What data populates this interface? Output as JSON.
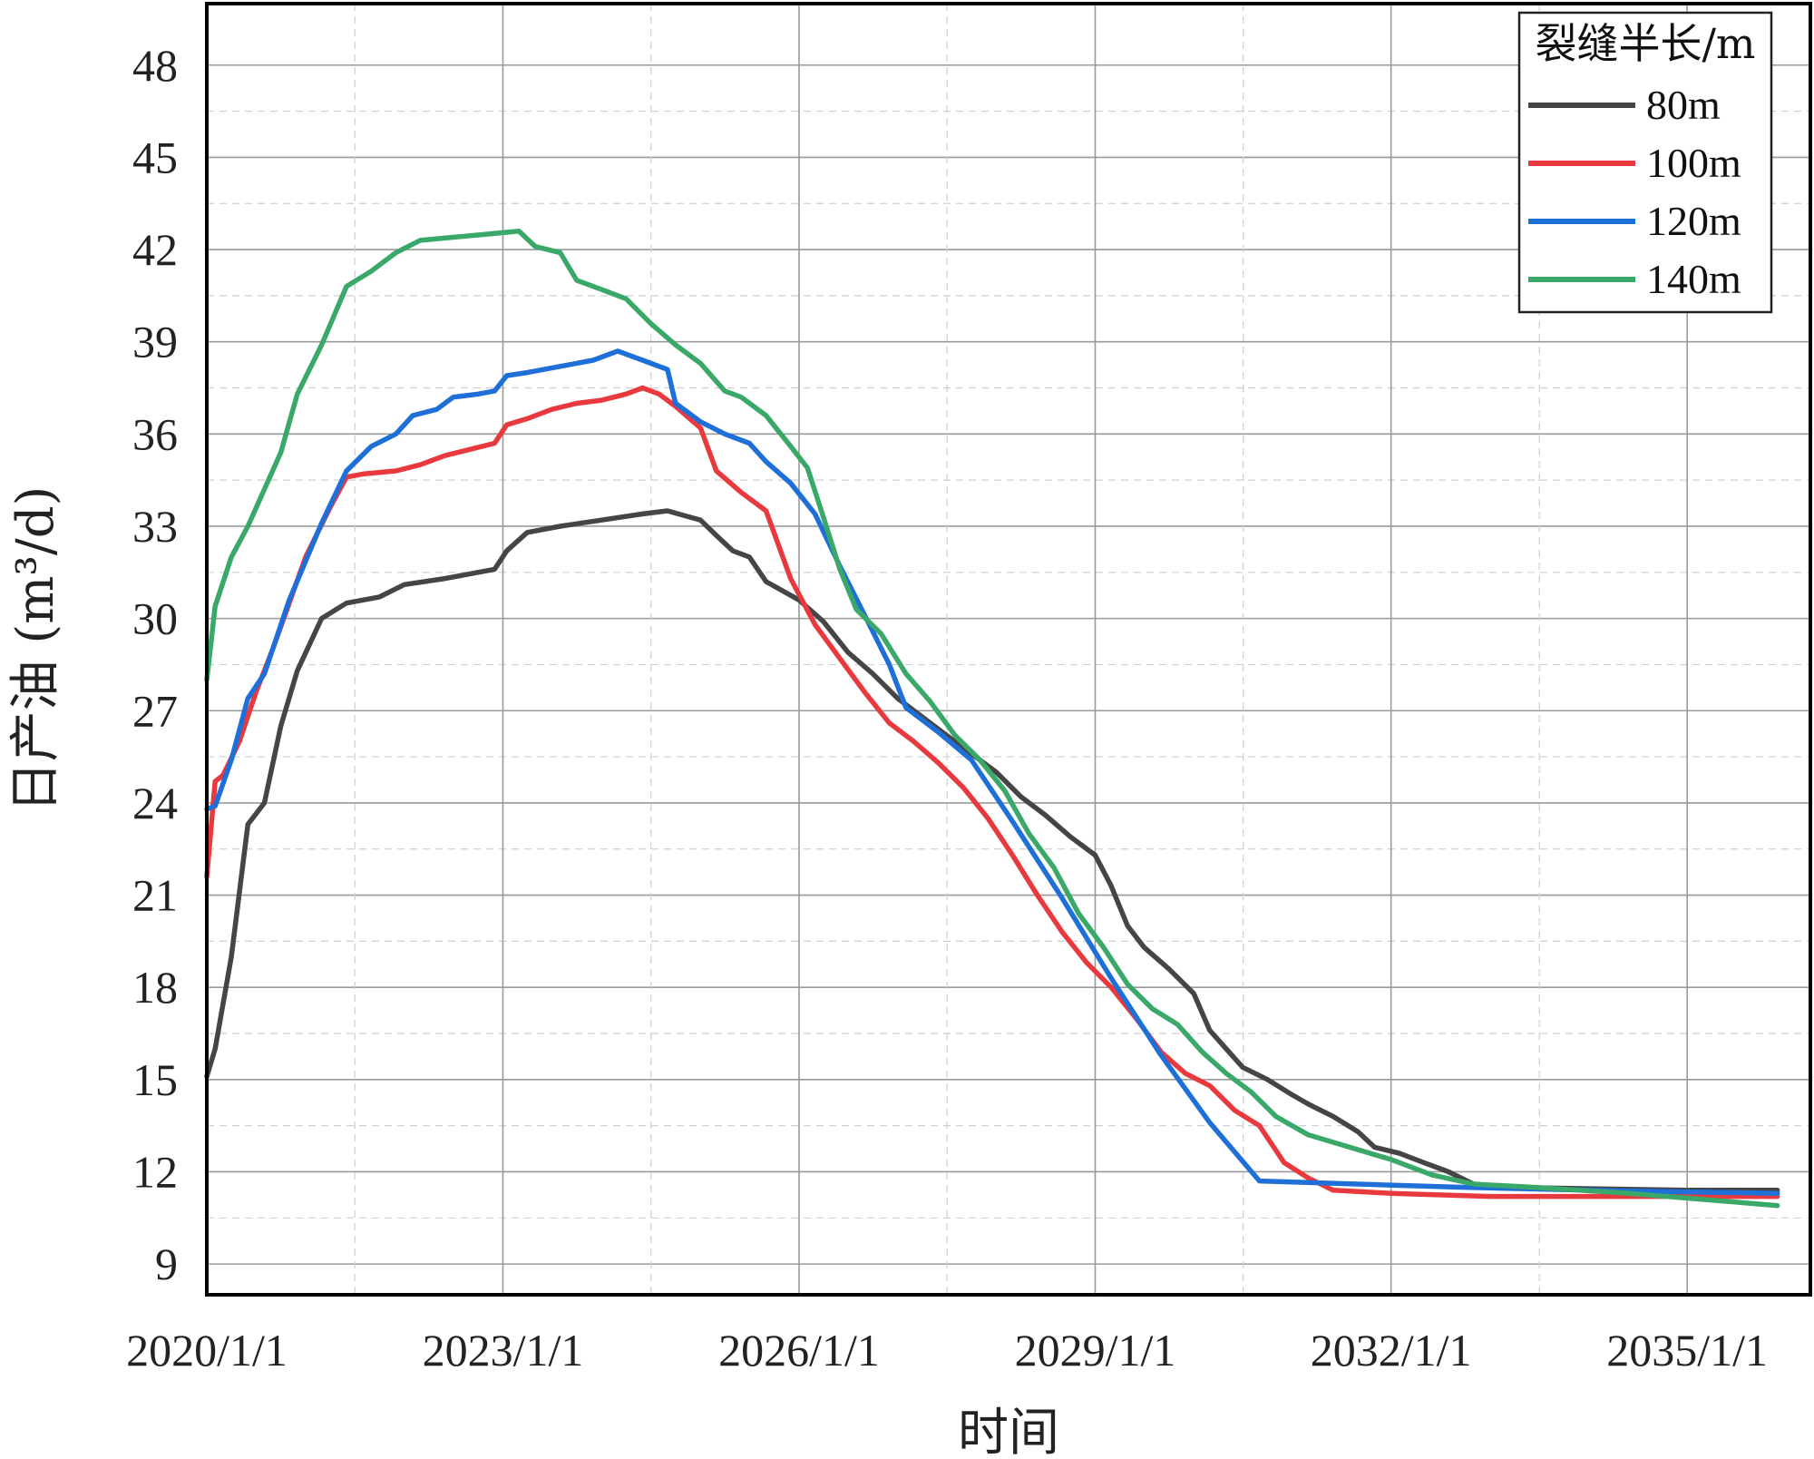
{
  "chart_data": {
    "type": "line",
    "xlabel": "时间",
    "ylabel": "日产油 (m³/d)",
    "xlim": [
      "2020/1/1",
      "2036/4/1"
    ],
    "ylim": [
      8,
      50
    ],
    "x_ticks": [
      "2020/1/1",
      "2023/1/1",
      "2026/1/1",
      "2029/1/1",
      "2032/1/1",
      "2035/1/1"
    ],
    "y_ticks": [
      9,
      12,
      15,
      18,
      21,
      24,
      27,
      30,
      33,
      36,
      39,
      42,
      45,
      48
    ],
    "grid": true,
    "legend": {
      "title": "裂缝半长/m",
      "placement": "top-right"
    },
    "series": [
      {
        "name": "80m",
        "color": "#454545",
        "points": [
          [
            "2020/1/1",
            15.1
          ],
          [
            "2020/2/1",
            16.0
          ],
          [
            "2020/4/1",
            19.0
          ],
          [
            "2020/6/1",
            23.3
          ],
          [
            "2020/8/1",
            24.0
          ],
          [
            "2020/10/1",
            26.5
          ],
          [
            "2020/12/1",
            28.3
          ],
          [
            "2021/3/1",
            30.0
          ],
          [
            "2021/6/1",
            30.5
          ],
          [
            "2021/10/1",
            30.7
          ],
          [
            "2022/1/1",
            31.1
          ],
          [
            "2022/6/1",
            31.3
          ],
          [
            "2022/10/1",
            31.5
          ],
          [
            "2022/12/1",
            31.6
          ],
          [
            "2023/1/15",
            32.2
          ],
          [
            "2023/4/1",
            32.8
          ],
          [
            "2023/8/1",
            33.0
          ],
          [
            "2024/1/1",
            33.2
          ],
          [
            "2024/6/1",
            33.4
          ],
          [
            "2024/9/1",
            33.5
          ],
          [
            "2025/1/1",
            33.2
          ],
          [
            "2025/3/1",
            32.7
          ],
          [
            "2025/5/1",
            32.2
          ],
          [
            "2025/7/1",
            32.0
          ],
          [
            "2025/9/1",
            31.2
          ],
          [
            "2026/1/1",
            30.6
          ],
          [
            "2026/4/1",
            29.9
          ],
          [
            "2026/7/1",
            28.9
          ],
          [
            "2026/10/1",
            28.2
          ],
          [
            "2027/1/1",
            27.4
          ],
          [
            "2027/4/1",
            26.8
          ],
          [
            "2027/7/1",
            26.2
          ],
          [
            "2027/10/1",
            25.6
          ],
          [
            "2028/1/1",
            25.0
          ],
          [
            "2028/4/1",
            24.2
          ],
          [
            "2028/7/1",
            23.6
          ],
          [
            "2028/10/1",
            22.9
          ],
          [
            "2029/1/1",
            22.3
          ],
          [
            "2029/3/1",
            21.3
          ],
          [
            "2029/5/1",
            20.0
          ],
          [
            "2029/7/1",
            19.3
          ],
          [
            "2029/10/1",
            18.6
          ],
          [
            "2030/1/1",
            17.8
          ],
          [
            "2030/3/1",
            16.6
          ],
          [
            "2030/5/1",
            16.0
          ],
          [
            "2030/7/1",
            15.4
          ],
          [
            "2030/10/1",
            15.0
          ],
          [
            "2031/1/1",
            14.5
          ],
          [
            "2031/3/1",
            14.2
          ],
          [
            "2031/6/1",
            13.8
          ],
          [
            "2031/9/1",
            13.3
          ],
          [
            "2031/11/1",
            12.8
          ],
          [
            "2032/2/1",
            12.6
          ],
          [
            "2032/5/1",
            12.3
          ],
          [
            "2032/8/1",
            12.0
          ],
          [
            "2032/11/1",
            11.6
          ],
          [
            "2033/3/1",
            11.5
          ],
          [
            "2034/1/1",
            11.45
          ],
          [
            "2035/1/1",
            11.4
          ],
          [
            "2035/12/1",
            11.4
          ]
        ]
      },
      {
        "name": "100m",
        "color": "#e8393e",
        "points": [
          [
            "2020/1/1",
            21.6
          ],
          [
            "2020/2/1",
            24.7
          ],
          [
            "2020/3/1",
            24.9
          ],
          [
            "2020/5/1",
            26.0
          ],
          [
            "2020/7/1",
            27.6
          ],
          [
            "2020/9/1",
            29.0
          ],
          [
            "2020/11/1",
            30.5
          ],
          [
            "2021/1/1",
            32.0
          ],
          [
            "2021/4/1",
            33.6
          ],
          [
            "2021/6/1",
            34.6
          ],
          [
            "2021/8/1",
            34.7
          ],
          [
            "2021/12/1",
            34.8
          ],
          [
            "2022/3/1",
            35.0
          ],
          [
            "2022/6/1",
            35.3
          ],
          [
            "2022/9/1",
            35.5
          ],
          [
            "2022/12/1",
            35.7
          ],
          [
            "2023/1/15",
            36.3
          ],
          [
            "2023/4/1",
            36.5
          ],
          [
            "2023/7/1",
            36.8
          ],
          [
            "2023/10/1",
            37.0
          ],
          [
            "2024/1/1",
            37.1
          ],
          [
            "2024/4/1",
            37.3
          ],
          [
            "2024/6/1",
            37.5
          ],
          [
            "2024/8/1",
            37.3
          ],
          [
            "2024/10/1",
            36.9
          ],
          [
            "2025/1/1",
            36.2
          ],
          [
            "2025/3/1",
            34.8
          ],
          [
            "2025/6/1",
            34.1
          ],
          [
            "2025/9/1",
            33.5
          ],
          [
            "2025/12/1",
            31.3
          ],
          [
            "2026/3/1",
            29.8
          ],
          [
            "2026/6/1",
            28.7
          ],
          [
            "2026/9/1",
            27.6
          ],
          [
            "2026/12/1",
            26.6
          ],
          [
            "2027/3/1",
            26.0
          ],
          [
            "2027/6/1",
            25.3
          ],
          [
            "2027/9/1",
            24.5
          ],
          [
            "2027/12/1",
            23.5
          ],
          [
            "2028/3/1",
            22.3
          ],
          [
            "2028/6/1",
            21.0
          ],
          [
            "2028/9/1",
            19.8
          ],
          [
            "2028/12/1",
            18.8
          ],
          [
            "2029/3/1",
            18.0
          ],
          [
            "2029/6/1",
            17.0
          ],
          [
            "2029/9/1",
            15.9
          ],
          [
            "2029/12/1",
            15.2
          ],
          [
            "2030/3/1",
            14.8
          ],
          [
            "2030/6/1",
            14.0
          ],
          [
            "2030/9/1",
            13.5
          ],
          [
            "2030/12/1",
            12.3
          ],
          [
            "2031/3/1",
            11.8
          ],
          [
            "2031/6/1",
            11.4
          ],
          [
            "2032/1/1",
            11.3
          ],
          [
            "2033/1/1",
            11.2
          ],
          [
            "2034/1/1",
            11.2
          ],
          [
            "2035/12/1",
            11.2
          ]
        ]
      },
      {
        "name": "120m",
        "color": "#1f6fd8",
        "points": [
          [
            "2020/1/1",
            23.8
          ],
          [
            "2020/2/1",
            23.9
          ],
          [
            "2020/4/1",
            25.4
          ],
          [
            "2020/6/1",
            27.4
          ],
          [
            "2020/8/1",
            28.2
          ],
          [
            "2020/11/1",
            30.6
          ],
          [
            "2021/3/1",
            33.1
          ],
          [
            "2021/6/1",
            34.8
          ],
          [
            "2021/9/1",
            35.6
          ],
          [
            "2021/12/1",
            36.0
          ],
          [
            "2022/2/1",
            36.6
          ],
          [
            "2022/5/1",
            36.8
          ],
          [
            "2022/7/1",
            37.2
          ],
          [
            "2022/10/1",
            37.3
          ],
          [
            "2022/12/1",
            37.4
          ],
          [
            "2023/1/15",
            37.9
          ],
          [
            "2023/4/1",
            38.0
          ],
          [
            "2023/8/1",
            38.2
          ],
          [
            "2023/12/1",
            38.4
          ],
          [
            "2024/3/1",
            38.7
          ],
          [
            "2024/6/1",
            38.4
          ],
          [
            "2024/9/1",
            38.1
          ],
          [
            "2024/10/1",
            37.0
          ],
          [
            "2025/1/1",
            36.4
          ],
          [
            "2025/4/1",
            36.0
          ],
          [
            "2025/7/1",
            35.7
          ],
          [
            "2025/9/1",
            35.1
          ],
          [
            "2025/12/1",
            34.4
          ],
          [
            "2026/3/1",
            33.4
          ],
          [
            "2026/6/1",
            31.7
          ],
          [
            "2026/9/1",
            30.1
          ],
          [
            "2026/12/1",
            28.5
          ],
          [
            "2027/2/1",
            27.1
          ],
          [
            "2027/6/1",
            26.3
          ],
          [
            "2027/10/1",
            25.4
          ],
          [
            "2028/3/1",
            23.4
          ],
          [
            "2028/9/1",
            20.9
          ],
          [
            "2029/3/1",
            18.3
          ],
          [
            "2029/9/1",
            15.8
          ],
          [
            "2030/3/1",
            13.6
          ],
          [
            "2030/9/1",
            11.7
          ],
          [
            "2031/9/1",
            11.6
          ],
          [
            "2032/9/1",
            11.5
          ],
          [
            "2034/1/1",
            11.4
          ],
          [
            "2035/12/1",
            11.3
          ]
        ]
      },
      {
        "name": "140m",
        "color": "#3aa869",
        "points": [
          [
            "2020/1/1",
            28.0
          ],
          [
            "2020/2/1",
            30.4
          ],
          [
            "2020/4/1",
            32.0
          ],
          [
            "2020/6/1",
            33.0
          ],
          [
            "2020/8/1",
            34.2
          ],
          [
            "2020/10/1",
            35.4
          ],
          [
            "2020/12/1",
            37.3
          ],
          [
            "2021/3/1",
            38.9
          ],
          [
            "2021/6/1",
            40.8
          ],
          [
            "2021/9/1",
            41.3
          ],
          [
            "2021/12/1",
            41.9
          ],
          [
            "2022/3/1",
            42.3
          ],
          [
            "2022/7/1",
            42.4
          ],
          [
            "2022/11/1",
            42.5
          ],
          [
            "2023/3/1",
            42.6
          ],
          [
            "2023/5/1",
            42.1
          ],
          [
            "2023/8/1",
            41.9
          ],
          [
            "2023/10/1",
            41.0
          ],
          [
            "2024/1/1",
            40.7
          ],
          [
            "2024/4/1",
            40.4
          ],
          [
            "2024/7/1",
            39.6
          ],
          [
            "2024/10/1",
            38.9
          ],
          [
            "2025/1/1",
            38.3
          ],
          [
            "2025/4/1",
            37.4
          ],
          [
            "2025/6/1",
            37.2
          ],
          [
            "2025/9/1",
            36.6
          ],
          [
            "2025/12/1",
            35.6
          ],
          [
            "2026/2/1",
            34.9
          ],
          [
            "2026/4/1",
            33.3
          ],
          [
            "2026/6/1",
            31.6
          ],
          [
            "2026/8/1",
            30.3
          ],
          [
            "2026/11/1",
            29.5
          ],
          [
            "2027/2/1",
            28.2
          ],
          [
            "2027/5/1",
            27.3
          ],
          [
            "2027/8/1",
            26.2
          ],
          [
            "2027/11/1",
            25.4
          ],
          [
            "2028/2/1",
            24.4
          ],
          [
            "2028/5/1",
            23.0
          ],
          [
            "2028/8/1",
            21.9
          ],
          [
            "2028/11/1",
            20.4
          ],
          [
            "2029/2/1",
            19.3
          ],
          [
            "2029/5/1",
            18.1
          ],
          [
            "2029/8/1",
            17.3
          ],
          [
            "2029/11/1",
            16.8
          ],
          [
            "2030/2/1",
            15.9
          ],
          [
            "2030/5/1",
            15.2
          ],
          [
            "2030/8/1",
            14.6
          ],
          [
            "2030/11/1",
            13.8
          ],
          [
            "2031/3/1",
            13.2
          ],
          [
            "2031/8/1",
            12.8
          ],
          [
            "2032/1/1",
            12.4
          ],
          [
            "2032/6/1",
            11.9
          ],
          [
            "2032/11/1",
            11.6
          ],
          [
            "2033/6/1",
            11.5
          ],
          [
            "2034/6/1",
            11.3
          ],
          [
            "2035/12/1",
            10.9
          ]
        ]
      }
    ]
  }
}
